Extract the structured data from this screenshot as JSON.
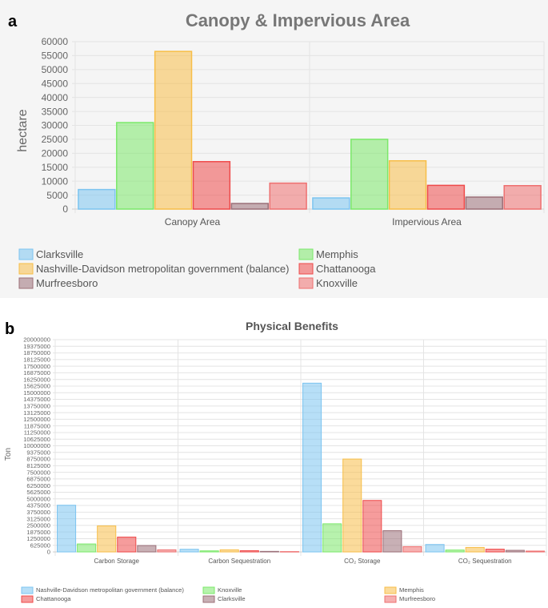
{
  "panels": {
    "a": {
      "letter": "a"
    },
    "b": {
      "letter": "b"
    }
  },
  "chart_data": [
    {
      "type": "bar",
      "title": "Canopy & Impervious Area",
      "xlabel": "",
      "ylabel": "hectare",
      "ylim": [
        0,
        60000
      ],
      "yticks": [
        "0",
        "5000",
        "10000",
        "15000",
        "20000",
        "25000",
        "30000",
        "35000",
        "40000",
        "45000",
        "50000",
        "55000",
        "60000"
      ],
      "categories": [
        "Canopy Area",
        "Impervious Area"
      ],
      "series": [
        {
          "name": "Clarksville",
          "values": [
            7000,
            4000
          ],
          "color": "#7cc4f0"
        },
        {
          "name": "Memphis",
          "values": [
            31000,
            25000
          ],
          "color": "#7be86a"
        },
        {
          "name": "Nashville-Davidson metropolitan government (balance)",
          "values": [
            56500,
            17300
          ],
          "color": "#f7be48"
        },
        {
          "name": "Chattanooga",
          "values": [
            17000,
            8500
          ],
          "color": "#ef4a4a"
        },
        {
          "name": "Murfreesboro",
          "values": [
            2000,
            4300
          ],
          "color": "#9b6f78"
        },
        {
          "name": "Knoxville",
          "values": [
            9300,
            8400
          ],
          "color": "#ee7070"
        }
      ],
      "legend_order": [
        "Clarksville",
        "Memphis",
        "Nashville-Davidson metropolitan government (balance)",
        "Chattanooga",
        "Murfreesboro",
        "Knoxville"
      ],
      "legend_position": "bottom"
    },
    {
      "type": "bar",
      "title": "Physical Benefits",
      "xlabel": "",
      "ylabel": "Ton",
      "ylim": [
        0,
        20000000
      ],
      "yticks": [
        "0",
        "625000",
        "1250000",
        "1875000",
        "2500000",
        "3125000",
        "3750000",
        "4375000",
        "5000000",
        "5625000",
        "6250000",
        "6875000",
        "7500000",
        "8125000",
        "8750000",
        "9375000",
        "10000000",
        "10625000",
        "11250000",
        "11875000",
        "12500000",
        "13125000",
        "13750000",
        "14375000",
        "15000000",
        "15625000",
        "16250000",
        "16875000",
        "17500000",
        "18125000",
        "18750000",
        "19375000",
        "20000000"
      ],
      "categories": [
        "Carbon Storage",
        "Carbon Sequestration",
        "CO₂ Storage",
        "CO₂ Sequestration"
      ],
      "series": [
        {
          "name": "Nashville-Davidson metropolitan government (balance)",
          "values": [
            4400000,
            250000,
            15900000,
            700000
          ],
          "color": "#7cc4f0"
        },
        {
          "name": "Knoxville",
          "values": [
            750000,
            100000,
            2650000,
            180000
          ],
          "color": "#7be86a"
        },
        {
          "name": "Memphis",
          "values": [
            2450000,
            200000,
            8750000,
            420000
          ],
          "color": "#f7be48"
        },
        {
          "name": "Chattanooga",
          "values": [
            1400000,
            120000,
            4850000,
            260000
          ],
          "color": "#ef4a4a"
        },
        {
          "name": "Clarksville",
          "values": [
            600000,
            50000,
            2000000,
            150000
          ],
          "color": "#9b6f78"
        },
        {
          "name": "Murfreesboro",
          "values": [
            200000,
            30000,
            500000,
            80000
          ],
          "color": "#ee7070"
        }
      ],
      "legend_order": [
        "Nashville-Davidson metropolitan government (balance)",
        "Knoxville",
        "Memphis",
        "Chattanooga",
        "Clarksville",
        "Murfreesboro"
      ],
      "legend_position": "bottom"
    }
  ]
}
